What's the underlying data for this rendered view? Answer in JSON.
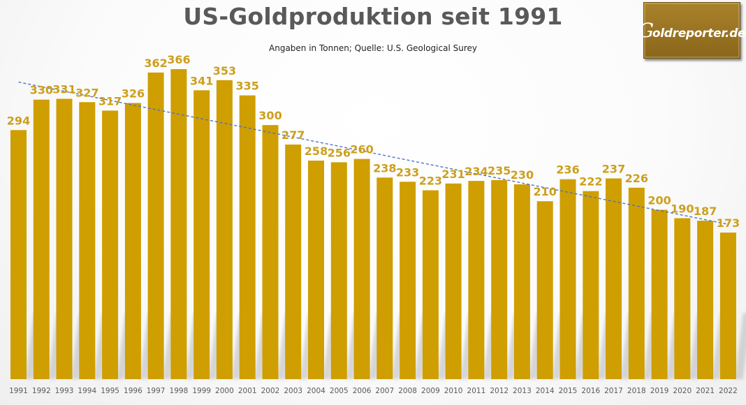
{
  "header": {
    "title": "US-Goldproduktion seit 1991",
    "subtitle": "Angaben in Tonnen; Quelle: U.S. Geological Surey"
  },
  "logo": {
    "initial": "G",
    "rest": "oldreporter.de"
  },
  "colors": {
    "bar": "#cf9e00",
    "label": "#cc9f1c",
    "trendline": "#4a74c9",
    "title": "#595959"
  },
  "chart_data": {
    "type": "bar",
    "title": "US-Goldproduktion seit 1991",
    "subtitle": "Angaben in Tonnen; Quelle: U.S. Geological Surey",
    "xlabel": "",
    "ylabel": "",
    "unit": "Tonnen",
    "categories": [
      "1991",
      "1992",
      "1993",
      "1994",
      "1995",
      "1996",
      "1997",
      "1998",
      "1999",
      "2000",
      "2001",
      "2002",
      "2003",
      "2004",
      "2005",
      "2006",
      "2007",
      "2008",
      "2009",
      "2010",
      "2011",
      "2012",
      "2013",
      "2014",
      "2015",
      "2016",
      "2017",
      "2018",
      "2019",
      "2020",
      "2021",
      "2022"
    ],
    "values": [
      294,
      330,
      331,
      327,
      317,
      326,
      362,
      366,
      341,
      353,
      335,
      300,
      277,
      258,
      256,
      260,
      238,
      233,
      223,
      231,
      234,
      235,
      230,
      210,
      236,
      222,
      237,
      226,
      200,
      190,
      187,
      173
    ],
    "ylim": [
      0,
      366
    ],
    "grid": false,
    "legend": "none",
    "data_labels": true,
    "trendline": {
      "type": "linear",
      "style": "dashed"
    }
  }
}
